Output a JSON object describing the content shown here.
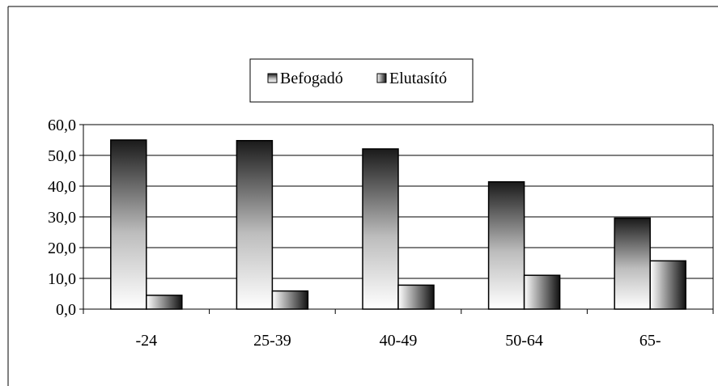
{
  "chart_data": {
    "type": "bar",
    "categories": [
      "-24",
      "25-39",
      "40-49",
      "50-64",
      "65-"
    ],
    "series": [
      {
        "name": "Befogadó",
        "values": [
          55.0,
          54.8,
          52.1,
          41.4,
          29.6
        ]
      },
      {
        "name": "Elutasító",
        "values": [
          4.5,
          5.9,
          7.8,
          11.0,
          15.7
        ]
      }
    ],
    "y_ticks": [
      "0,0",
      "10,0",
      "20,0",
      "30,0",
      "40,0",
      "50,0",
      "60,0"
    ],
    "ylim": [
      0,
      60
    ],
    "grid": true,
    "legend_position": "top-center"
  }
}
